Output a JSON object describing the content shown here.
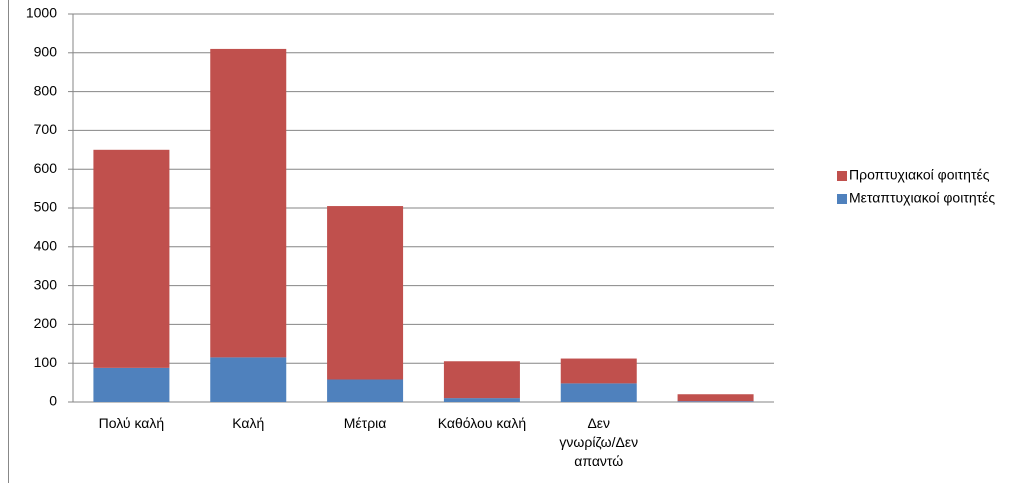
{
  "chart_data": {
    "type": "stacked-bar",
    "categories": [
      "Πολύ καλή",
      "Καλή",
      "Μέτρια",
      "Καθόλου καλή",
      "Δεν γνωρίζω/Δεν απαντώ",
      null
    ],
    "series": [
      {
        "name": "Μεταπτυχιακοί φοιτητές",
        "color": "#4f81bd",
        "values": [
          88,
          115,
          58,
          10,
          48,
          2
        ]
      },
      {
        "name": "Προπτυχιακοί φοιτητές",
        "color": "#c0504d",
        "values": [
          562,
          795,
          447,
          95,
          64,
          18
        ]
      }
    ],
    "ylim": [
      0,
      1000
    ],
    "yticks": [
      0,
      100,
      200,
      300,
      400,
      500,
      600,
      700,
      800,
      900,
      1000
    ],
    "grid": true,
    "legend": "right"
  }
}
